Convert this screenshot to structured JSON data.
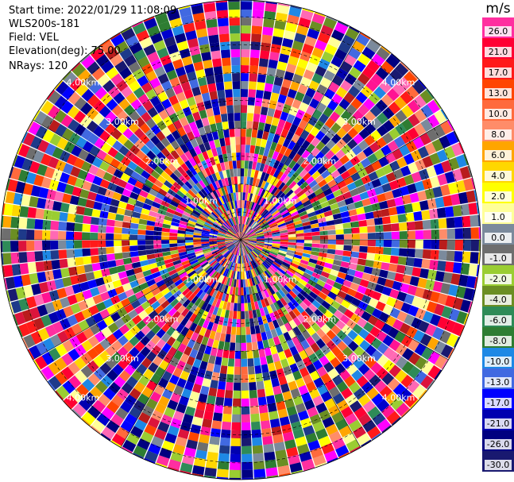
{
  "info": {
    "start_time": "Start time: 2022/01/29 11:08:09",
    "site": "WLS200s-181",
    "field": "Field: VEL",
    "elevation": "Elevation(deg): 75.00",
    "nrays": "NRays: 120"
  },
  "range_rings": [
    "1.00km",
    "2.00km",
    "3.00km",
    "4.00km"
  ],
  "colorbar": {
    "unit": "m/s",
    "levels": [
      {
        "label": "26.0",
        "color": "#ff2fa0"
      },
      {
        "label": "21.0",
        "color": "#ff0033"
      },
      {
        "label": "17.0",
        "color": "#ff1a1a"
      },
      {
        "label": "13.0",
        "color": "#ff4500"
      },
      {
        "label": "10.0",
        "color": "#ff6a3d"
      },
      {
        "label": "8.0",
        "color": "#ff8c69"
      },
      {
        "label": "6.0",
        "color": "#ffa500"
      },
      {
        "label": "4.0",
        "color": "#ffd700"
      },
      {
        "label": "2.0",
        "color": "#ffff00"
      },
      {
        "label": "1.0",
        "color": "#ffff99"
      },
      {
        "label": "0.0",
        "color": "#7b8a9c"
      },
      {
        "label": "-1.0",
        "color": "#6e6e6e"
      },
      {
        "label": "-2.0",
        "color": "#9acd32"
      },
      {
        "label": "-4.0",
        "color": "#6b8e23"
      },
      {
        "label": "-6.0",
        "color": "#2e8b57"
      },
      {
        "label": "-8.0",
        "color": "#2e7d32"
      },
      {
        "label": "-10.0",
        "color": "#1e88e5"
      },
      {
        "label": "-13.0",
        "color": "#4169e1"
      },
      {
        "label": "-17.0",
        "color": "#0000ff"
      },
      {
        "label": "-21.0",
        "color": "#0000b0"
      },
      {
        "label": "-26.0",
        "color": "#000080"
      },
      {
        "label": "-30.0",
        "color": "#191970"
      }
    ]
  }
}
